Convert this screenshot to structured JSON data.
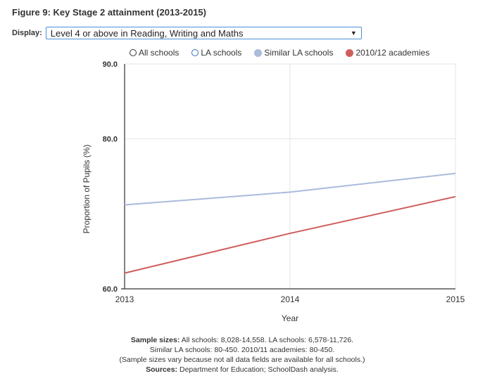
{
  "figure_title": "Figure 9: Key Stage 2 attainment (2013-2015)",
  "display": {
    "label": "Display:",
    "selected": "Level 4 or above in Reading, Writing and Maths"
  },
  "legend": [
    {
      "name": "All schools",
      "style": "hollow",
      "color": "#333333"
    },
    {
      "name": "LA schools",
      "style": "hollow",
      "color": "#2f6fb5"
    },
    {
      "name": "Similar LA schools",
      "style": "filled",
      "color": "#aabbdc"
    },
    {
      "name": "2010/12 academies",
      "style": "filled",
      "color": "#d05c5c"
    }
  ],
  "chart_data": {
    "type": "line",
    "xlabel": "Year",
    "ylabel": "Proportion of Pupils (%)",
    "categories": [
      "2013",
      "2014",
      "2015"
    ],
    "ylim": [
      60,
      90
    ],
    "yticks": [
      "90.0",
      "80.0",
      "60.0"
    ],
    "ytick_values": [
      90,
      80,
      60
    ],
    "series": [
      {
        "name": "Similar LA schools",
        "color": "#aabbdc",
        "values": [
          71.2,
          72.9,
          75.4
        ]
      },
      {
        "name": "2010/12 academies",
        "color": "#d05c5c",
        "values": [
          62.1,
          67.4,
          72.3
        ]
      }
    ]
  },
  "footer": {
    "line1_bold": "Sample sizes:",
    "line1_text": " All schools: 8,028-14,558. LA schools: 6,578-11,726.",
    "line2": "Similar LA schools: 80-450. 2010/11 academies: 80-450.",
    "line3": "(Sample sizes vary because not all data fields are available for all schools.)",
    "line4_bold": "Sources:",
    "line4_text": " Department for Education; SchoolDash analysis."
  }
}
